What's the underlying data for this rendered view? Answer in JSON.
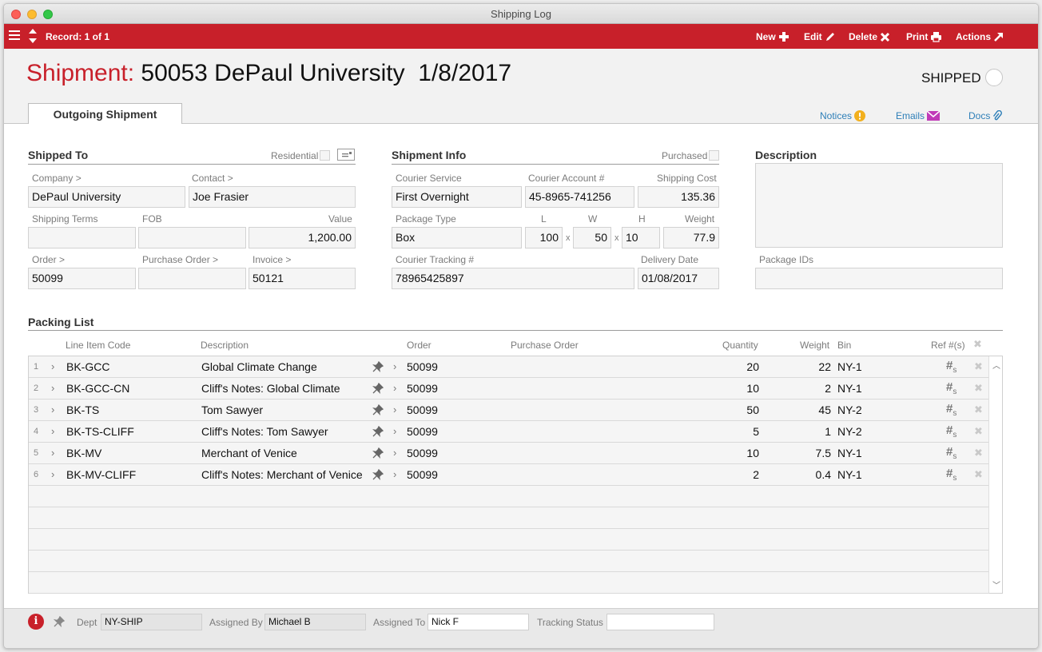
{
  "window": {
    "title": "Shipping Log"
  },
  "toolbar": {
    "record": "Record: 1 of 1",
    "new": "New",
    "edit": "Edit",
    "delete": "Delete",
    "print": "Print",
    "actions": "Actions"
  },
  "header": {
    "label": "Shipment:",
    "title": "50053 DePaul University",
    "date": "1/8/2017",
    "status": "SHIPPED"
  },
  "tabs": {
    "outgoing": "Outgoing Shipment"
  },
  "links": {
    "notices": "Notices",
    "emails": "Emails",
    "docs": "Docs"
  },
  "shipped_to": {
    "heading": "Shipped To",
    "residential_label": "Residential",
    "company_label": "Company >",
    "company": "DePaul University",
    "contact_label": "Contact >",
    "contact": "Joe Frasier",
    "terms_label": "Shipping Terms",
    "terms": "",
    "fob_label": "FOB",
    "fob": "",
    "value_label": "Value",
    "value": "1,200.00",
    "order_label": "Order >",
    "order": "50099",
    "po_label": "Purchase Order >",
    "po": "",
    "invoice_label": "Invoice >",
    "invoice": "50121"
  },
  "shipment_info": {
    "heading": "Shipment Info",
    "purchased_label": "Purchased",
    "courier_service_label": "Courier Service",
    "courier_service": "First Overnight",
    "courier_account_label": "Courier Account #",
    "courier_account": "45-8965-741256",
    "shipping_cost_label": "Shipping Cost",
    "shipping_cost": "135.36",
    "package_type_label": "Package Type",
    "package_type": "Box",
    "l_label": "L",
    "l": "100",
    "w_label": "W",
    "w": "50",
    "h_label": "H",
    "h": "10",
    "weight_label": "Weight",
    "weight": "77.9",
    "x": "x",
    "tracking_label": "Courier Tracking #",
    "tracking": "78965425897",
    "delivery_label": "Delivery Date",
    "delivery": "01/08/2017"
  },
  "description": {
    "heading": "Description",
    "text": "",
    "package_ids_label": "Package IDs",
    "package_ids": ""
  },
  "packing_list": {
    "heading": "Packing List",
    "columns": {
      "code": "Line Item Code",
      "description": "Description",
      "order": "Order",
      "po": "Purchase Order",
      "quantity": "Quantity",
      "weight": "Weight",
      "bin": "Bin",
      "ref": "Ref #(s)"
    },
    "rows": [
      {
        "n": "1",
        "code": "BK-GCC",
        "description": "Global Climate Change",
        "order": "50099",
        "po": "",
        "quantity": "20",
        "weight": "22",
        "bin": "NY-1"
      },
      {
        "n": "2",
        "code": "BK-GCC-CN",
        "description": "Cliff's Notes: Global Climate",
        "order": "50099",
        "po": "",
        "quantity": "10",
        "weight": "2",
        "bin": "NY-1"
      },
      {
        "n": "3",
        "code": "BK-TS",
        "description": "Tom Sawyer",
        "order": "50099",
        "po": "",
        "quantity": "50",
        "weight": "45",
        "bin": "NY-2"
      },
      {
        "n": "4",
        "code": "BK-TS-CLIFF",
        "description": "Cliff's Notes: Tom Sawyer",
        "order": "50099",
        "po": "",
        "quantity": "5",
        "weight": "1",
        "bin": "NY-2"
      },
      {
        "n": "5",
        "code": "BK-MV",
        "description": "Merchant of Venice",
        "order": "50099",
        "po": "",
        "quantity": "10",
        "weight": "7.5",
        "bin": "NY-1"
      },
      {
        "n": "6",
        "code": "BK-MV-CLIFF",
        "description": "Cliff's Notes: Merchant of Venice",
        "order": "50099",
        "po": "",
        "quantity": "2",
        "weight": "0.4",
        "bin": "NY-1"
      }
    ]
  },
  "footer": {
    "dept_label": "Dept",
    "dept": "NY-SHIP",
    "assigned_by_label": "Assigned By",
    "assigned_by": "Michael B",
    "assigned_to_label": "Assigned To",
    "assigned_to": "Nick F",
    "tracking_status_label": "Tracking Status",
    "tracking_status": ""
  },
  "colors": {
    "accent": "#c8202a",
    "link": "#2e7fb8",
    "notice": "#f2b01e",
    "email": "#c03ab8"
  }
}
